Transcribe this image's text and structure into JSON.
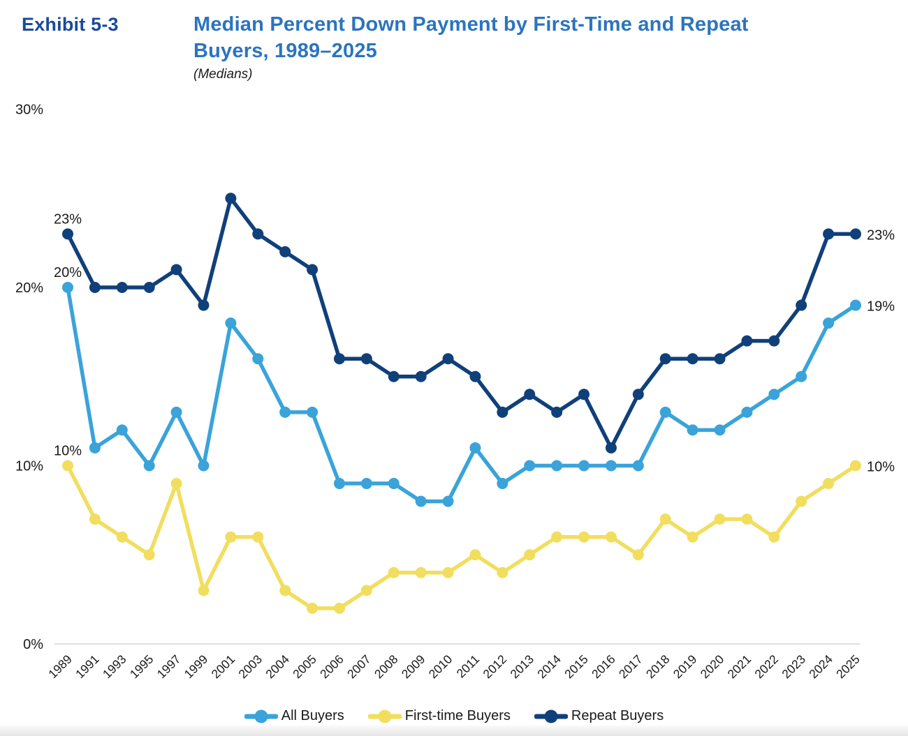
{
  "header": {
    "exhibit": "Exhibit 5-3",
    "title_line1": "Median Percent Down Payment by First-Time and Repeat",
    "title_line2": "Buyers, 1989–2025",
    "subtitle": "(Medians)"
  },
  "colors": {
    "all_buyers": "#3AA3DA",
    "first_time_buyers": "#F2DE5E",
    "repeat_buyers": "#10407A",
    "title_blue": "#2B74BF",
    "exhibit_navy": "#1B4A9B",
    "axis_line": "#D6D6D6",
    "label_text": "#1A1A1A"
  },
  "chart_data": {
    "type": "line",
    "title": "Median Percent Down Payment by First-Time and Repeat Buyers, 1989–2025",
    "subtitle": "(Medians)",
    "xlabel": "",
    "ylabel": "",
    "ylim": [
      0,
      30
    ],
    "grid": false,
    "legend_position": "bottom",
    "categories": [
      "1989",
      "1991",
      "1993",
      "1995",
      "1997",
      "1999",
      "2001",
      "2003",
      "2004",
      "2005",
      "2006",
      "2007",
      "2008",
      "2009",
      "2010",
      "2011",
      "2012",
      "2013",
      "2014",
      "2015",
      "2016",
      "2017",
      "2018",
      "2019",
      "2020",
      "2021",
      "2022",
      "2023",
      "2024",
      "2025"
    ],
    "yticks": [
      {
        "value": 0,
        "label": "0%"
      },
      {
        "value": 10,
        "label": "10%"
      },
      {
        "value": 20,
        "label": "20%"
      },
      {
        "value": 30,
        "label": "30%"
      }
    ],
    "series": [
      {
        "name": "All Buyers",
        "color": "#3AA3DA",
        "values": [
          20,
          11,
          12,
          10,
          13,
          10,
          18,
          16,
          13,
          13,
          9,
          9,
          9,
          8,
          8,
          11,
          9,
          10,
          10,
          10,
          10,
          10,
          13,
          12,
          12,
          13,
          14,
          15,
          18,
          19
        ]
      },
      {
        "name": "First-time Buyers",
        "color": "#F2DE5E",
        "values": [
          10,
          7,
          6,
          5,
          9,
          3,
          6,
          6,
          3,
          2,
          2,
          3,
          4,
          4,
          4,
          5,
          4,
          5,
          6,
          6,
          6,
          5,
          7,
          6,
          7,
          7,
          6,
          8,
          9,
          10
        ]
      },
      {
        "name": "Repeat Buyers",
        "color": "#10407A",
        "values": [
          23,
          20,
          20,
          20,
          21,
          19,
          25,
          23,
          22,
          21,
          16,
          16,
          15,
          15,
          16,
          15,
          13,
          14,
          13,
          14,
          11,
          14,
          16,
          16,
          16,
          17,
          17,
          19,
          23,
          23
        ]
      }
    ],
    "point_labels": [
      {
        "series": "Repeat Buyers",
        "category": "1989",
        "text": "23%",
        "placement": "above"
      },
      {
        "series": "All Buyers",
        "category": "1989",
        "text": "20%",
        "placement": "above"
      },
      {
        "series": "First-time Buyers",
        "category": "1989",
        "text": "10%",
        "placement": "above"
      },
      {
        "series": "Repeat Buyers",
        "category": "2025",
        "text": "23%",
        "placement": "right"
      },
      {
        "series": "All Buyers",
        "category": "2025",
        "text": "19%",
        "placement": "right"
      },
      {
        "series": "First-time Buyers",
        "category": "2025",
        "text": "10%",
        "placement": "right"
      }
    ]
  },
  "legend": {
    "items": [
      {
        "label": "All Buyers",
        "color": "#3AA3DA"
      },
      {
        "label": "First-time Buyers",
        "color": "#F2DE5E"
      },
      {
        "label": "Repeat Buyers",
        "color": "#10407A"
      }
    ]
  }
}
